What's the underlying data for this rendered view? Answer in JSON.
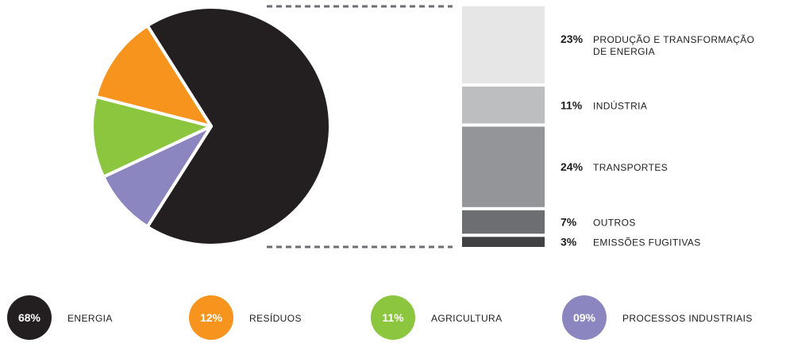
{
  "chart_data": {
    "type": "pie",
    "pie": {
      "slices": [
        {
          "name": "ENERGIA",
          "label": "68%",
          "value": 68,
          "color": "#231f20"
        },
        {
          "name": "PROCESSOS INDUSTRIAIS",
          "label": "09%",
          "value": 9,
          "color": "#8b85c0"
        },
        {
          "name": "AGRICULTURA",
          "label": "11%",
          "value": 11,
          "color": "#8cc63f"
        },
        {
          "name": "RESÍDUOS",
          "label": "12%",
          "value": 12,
          "color": "#f7941e"
        }
      ]
    },
    "breakdown": {
      "of": "ENERGIA",
      "segments": [
        {
          "pct": "23%",
          "value": 23,
          "lines": [
            "PRODUÇÃO E TRANSFORMAÇÃO",
            "DE ENERGIA"
          ],
          "color": "#e6e6e6"
        },
        {
          "pct": "11%",
          "value": 11,
          "lines": [
            "INDÚSTRIA"
          ],
          "color": "#bcbec0"
        },
        {
          "pct": "24%",
          "value": 24,
          "lines": [
            "TRANSPORTES"
          ],
          "color": "#939598"
        },
        {
          "pct": "7%",
          "value": 7,
          "lines": [
            "OUTROS"
          ],
          "color": "#6d6e71"
        },
        {
          "pct": "3%",
          "value": 3,
          "lines": [
            "EMISSÕES FUGITIVAS"
          ],
          "color": "#414042"
        }
      ]
    },
    "legend": [
      {
        "badge": "68%",
        "label": "ENERGIA",
        "color": "#231f20"
      },
      {
        "badge": "12%",
        "label": "RESÍDUOS",
        "color": "#f7941e"
      },
      {
        "badge": "11%",
        "label": "AGRICULTURA",
        "color": "#8cc63f"
      },
      {
        "badge": "09%",
        "label": "PROCESSOS INDUSTRIAIS",
        "color": "#8b85c0"
      }
    ]
  }
}
